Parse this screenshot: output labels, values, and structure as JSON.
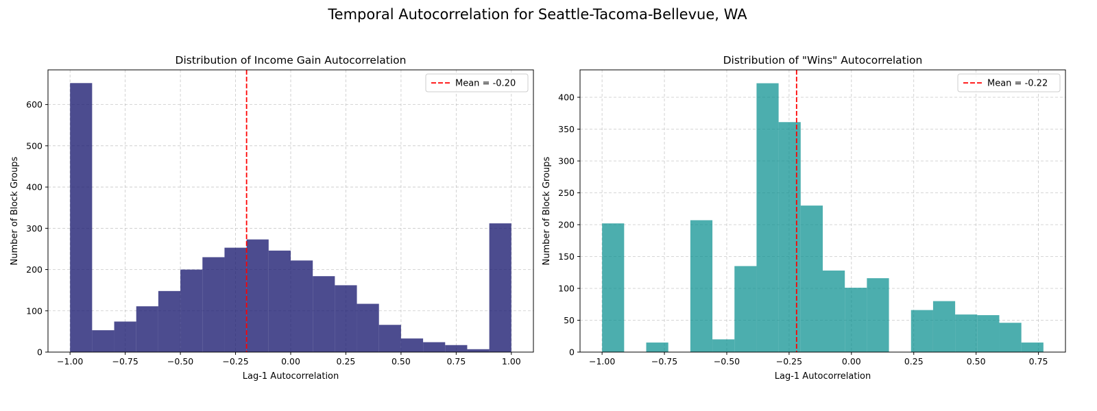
{
  "figure": {
    "suptitle": "Temporal Autocorrelation for Seattle-Tacoma-Bellevue, WA"
  },
  "chart_data": [
    {
      "type": "bar",
      "title": "Distribution of Income Gain Autocorrelation",
      "xlabel": "Lag-1 Autocorrelation",
      "ylabel": "Number of Block Groups",
      "xlim": [
        -1.1,
        1.1
      ],
      "ylim": [
        0,
        684
      ],
      "xticks": [
        -1.0,
        -0.75,
        -0.5,
        -0.25,
        0.0,
        0.25,
        0.5,
        0.75,
        1.0
      ],
      "xtick_labels": [
        "−1.00",
        "−0.75",
        "−0.50",
        "−0.25",
        "0.00",
        "0.25",
        "0.50",
        "0.75",
        "1.00"
      ],
      "yticks": [
        0,
        100,
        200,
        300,
        400,
        500,
        600
      ],
      "ytick_labels": [
        "0",
        "100",
        "200",
        "300",
        "400",
        "500",
        "600"
      ],
      "bin_edges": [
        -1.0,
        -0.9,
        -0.8,
        -0.7,
        -0.6,
        -0.5,
        -0.4,
        -0.3,
        -0.2,
        -0.1,
        0.0,
        0.1,
        0.2,
        0.3,
        0.4,
        0.5,
        0.6,
        0.7,
        0.8,
        0.9,
        1.0
      ],
      "values": [
        652,
        53,
        74,
        111,
        148,
        200,
        230,
        253,
        273,
        246,
        222,
        184,
        162,
        117,
        66,
        33,
        24,
        17,
        7,
        312
      ],
      "color": "#191970",
      "alpha": 0.78,
      "mean": -0.2,
      "mean_label": "Mean = -0.20",
      "mean_color": "#ff0000",
      "grid": true,
      "legend": "upper-right"
    },
    {
      "type": "bar",
      "title": "Distribution of \"Wins\" Autocorrelation",
      "xlabel": "Lag-1 Autocorrelation",
      "ylabel": "Number of Block Groups",
      "xlim": [
        -1.0884,
        0.8584
      ],
      "ylim": [
        0,
        443
      ],
      "xticks": [
        -1.0,
        -0.75,
        -0.5,
        -0.25,
        0.0,
        0.25,
        0.5,
        0.75
      ],
      "xtick_labels": [
        "−1.00",
        "−0.75",
        "−0.50",
        "−0.25",
        "0.00",
        "0.25",
        "0.50",
        "0.75"
      ],
      "yticks": [
        0,
        50,
        100,
        150,
        200,
        250,
        300,
        350,
        400
      ],
      "ytick_labels": [
        "0",
        "50",
        "100",
        "150",
        "200",
        "250",
        "300",
        "350",
        "400"
      ],
      "bin_edges": [
        -1.0,
        -0.9115,
        -0.823,
        -0.7345,
        -0.646,
        -0.5575,
        -0.469,
        -0.3805,
        -0.292,
        -0.2035,
        -0.115,
        -0.0265,
        0.062,
        0.1505,
        0.239,
        0.3275,
        0.416,
        0.5045,
        0.593,
        0.6815,
        0.77
      ],
      "values": [
        202,
        0,
        15,
        0,
        207,
        20,
        135,
        422,
        361,
        230,
        128,
        101,
        116,
        0,
        66,
        80,
        59,
        58,
        46,
        15
      ],
      "color": "#008b8b",
      "alpha": 0.7,
      "mean": -0.22,
      "mean_label": "Mean = -0.22",
      "mean_color": "#ff0000",
      "grid": true,
      "legend": "upper-right"
    }
  ]
}
